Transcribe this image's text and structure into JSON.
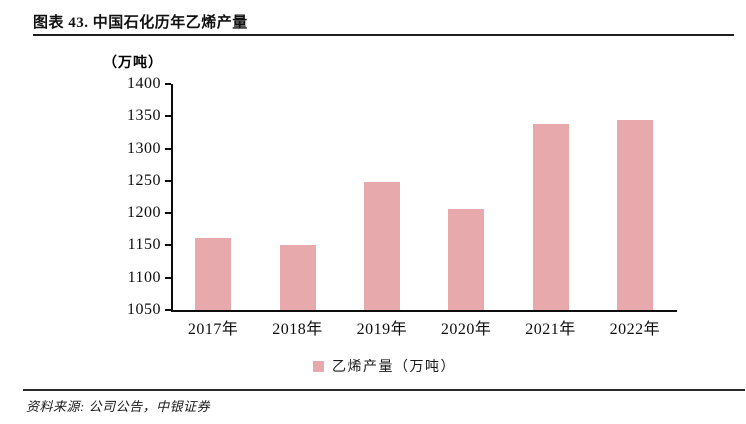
{
  "header": {
    "title": "图表 43. 中国石化历年乙烯产量"
  },
  "chart": {
    "unit_label": "（万吨）",
    "legend_label": "乙烯产量（万吨）"
  },
  "chart_data": {
    "type": "bar",
    "title": "中国石化历年乙烯产量",
    "categories": [
      "2017年",
      "2018年",
      "2019年",
      "2020年",
      "2021年",
      "2022年"
    ],
    "values": [
      1161,
      1151,
      1249,
      1206,
      1338,
      1344
    ],
    "xlabel": "",
    "ylabel": "（万吨）",
    "ylim": [
      1050,
      1400
    ],
    "ytick_step": 50,
    "yticks": [
      1050,
      1100,
      1150,
      1200,
      1250,
      1300,
      1350,
      1400
    ],
    "legend": [
      "乙烯产量（万吨）"
    ],
    "legend_position": "bottom",
    "grid": false,
    "bar_color": "#e8a9ac",
    "axis_color": "#0d0d0d"
  },
  "footer": {
    "source": "资料来源: 公司公告，中银证券"
  }
}
